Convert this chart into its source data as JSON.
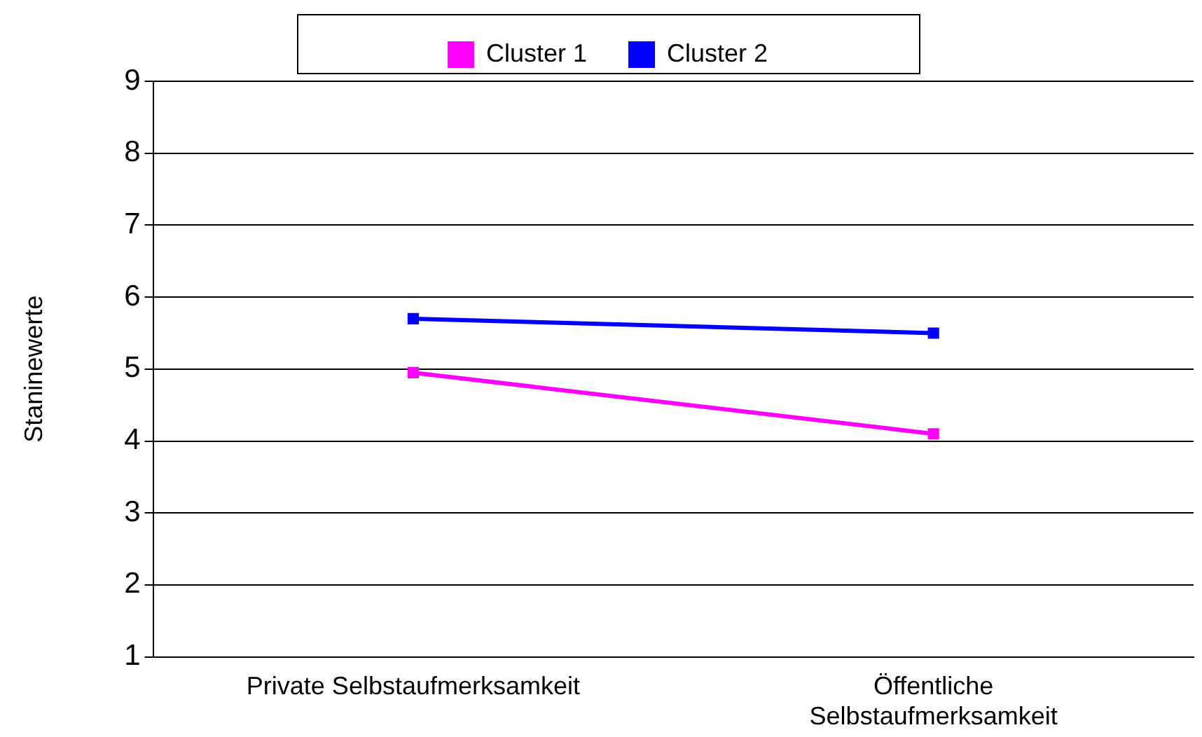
{
  "chart_data": {
    "type": "line",
    "ylabel": "Staninewerte",
    "categories": [
      "Private Selbstaufmerksamkeit",
      "Öffentliche Selbstaufmerksamkeit"
    ],
    "series": [
      {
        "name": "Cluster 1",
        "color": "#ff00ff",
        "values": [
          4.95,
          4.1
        ]
      },
      {
        "name": "Cluster 2",
        "color": "#0000ff",
        "values": [
          5.7,
          5.5
        ]
      }
    ],
    "ylim": [
      1,
      9
    ],
    "yticks": [
      1,
      2,
      3,
      4,
      5,
      6,
      7,
      8,
      9
    ],
    "grid": "y",
    "legend": "top",
    "marker": "square",
    "line_style": "solid"
  }
}
